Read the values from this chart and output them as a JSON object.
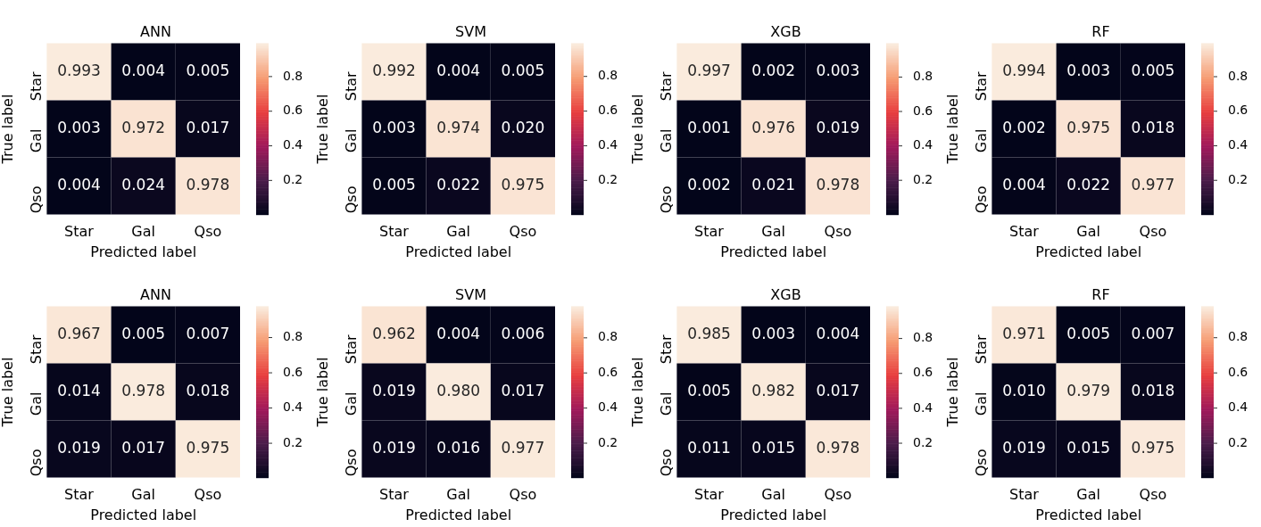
{
  "chart_data": [
    {
      "type": "heatmap",
      "title": "ANN",
      "xlabel": "Predicted label",
      "ylabel": "True label",
      "categories": [
        "Star",
        "Gal",
        "Qso"
      ],
      "y_categories": [
        "Star",
        "Gal",
        "Qso"
      ],
      "cells": [
        [
          0.993,
          0.004,
          0.005
        ],
        [
          0.003,
          0.972,
          0.017
        ],
        [
          0.004,
          0.024,
          0.978
        ]
      ],
      "cell_labels": [
        [
          "0.993",
          "0.004",
          "0.005"
        ],
        [
          "0.003",
          "0.972",
          "0.017"
        ],
        [
          "0.004",
          "0.024",
          "0.978"
        ]
      ],
      "data_labels": true,
      "clim": [
        0.003,
        0.993
      ],
      "cticks": [
        0.2,
        0.4,
        0.6,
        0.8
      ]
    },
    {
      "type": "heatmap",
      "title": "SVM",
      "xlabel": "Predicted label",
      "ylabel": "True label",
      "categories": [
        "Star",
        "Gal",
        "Qso"
      ],
      "y_categories": [
        "Star",
        "Gal",
        "Qso"
      ],
      "cells": [
        [
          0.992,
          0.004,
          0.005
        ],
        [
          0.003,
          0.974,
          0.02
        ],
        [
          0.005,
          0.022,
          0.975
        ]
      ],
      "cell_labels": [
        [
          "0.992",
          "0.004",
          "0.005"
        ],
        [
          "0.003",
          "0.974",
          "0.020"
        ],
        [
          "0.005",
          "0.022",
          "0.975"
        ]
      ],
      "data_labels": true,
      "clim": [
        0.003,
        0.992
      ],
      "cticks": [
        0.2,
        0.4,
        0.6,
        0.8
      ]
    },
    {
      "type": "heatmap",
      "title": "XGB",
      "xlabel": "Predicted label",
      "ylabel": "True label",
      "categories": [
        "Star",
        "Gal",
        "Qso"
      ],
      "y_categories": [
        "Star",
        "Gal",
        "Qso"
      ],
      "cells": [
        [
          0.997,
          0.002,
          0.003
        ],
        [
          0.001,
          0.976,
          0.019
        ],
        [
          0.002,
          0.021,
          0.978
        ]
      ],
      "cell_labels": [
        [
          "0.997",
          "0.002",
          "0.003"
        ],
        [
          "0.001",
          "0.976",
          "0.019"
        ],
        [
          "0.002",
          "0.021",
          "0.978"
        ]
      ],
      "data_labels": true,
      "clim": [
        0.001,
        0.997
      ],
      "cticks": [
        0.2,
        0.4,
        0.6,
        0.8
      ]
    },
    {
      "type": "heatmap",
      "title": "RF",
      "xlabel": "Predicted label",
      "ylabel": "True label",
      "categories": [
        "Star",
        "Gal",
        "Qso"
      ],
      "y_categories": [
        "Star",
        "Gal",
        "Qso"
      ],
      "cells": [
        [
          0.994,
          0.003,
          0.005
        ],
        [
          0.002,
          0.975,
          0.018
        ],
        [
          0.004,
          0.022,
          0.977
        ]
      ],
      "cell_labels": [
        [
          "0.994",
          "0.003",
          "0.005"
        ],
        [
          "0.002",
          "0.975",
          "0.018"
        ],
        [
          "0.004",
          "0.022",
          "0.977"
        ]
      ],
      "data_labels": true,
      "clim": [
        0.002,
        0.994
      ],
      "cticks": [
        0.2,
        0.4,
        0.6,
        0.8
      ]
    },
    {
      "type": "heatmap",
      "title": "ANN",
      "xlabel": "Predicted label",
      "ylabel": "True label",
      "categories": [
        "Star",
        "Gal",
        "Qso"
      ],
      "y_categories": [
        "Star",
        "Gal",
        "Qso"
      ],
      "cells": [
        [
          0.967,
          0.005,
          0.007
        ],
        [
          0.014,
          0.978,
          0.018
        ],
        [
          0.019,
          0.017,
          0.975
        ]
      ],
      "cell_labels": [
        [
          "0.967",
          "0.005",
          "0.007"
        ],
        [
          "0.014",
          "0.978",
          "0.018"
        ],
        [
          "0.019",
          "0.017",
          "0.975"
        ]
      ],
      "data_labels": true,
      "clim": [
        0.005,
        0.978
      ],
      "cticks": [
        0.2,
        0.4,
        0.6,
        0.8
      ]
    },
    {
      "type": "heatmap",
      "title": "SVM",
      "xlabel": "Predicted label",
      "ylabel": "True label",
      "categories": [
        "Star",
        "Gal",
        "Qso"
      ],
      "y_categories": [
        "Star",
        "Gal",
        "Qso"
      ],
      "cells": [
        [
          0.962,
          0.004,
          0.006
        ],
        [
          0.019,
          0.98,
          0.017
        ],
        [
          0.019,
          0.016,
          0.977
        ]
      ],
      "cell_labels": [
        [
          "0.962",
          "0.004",
          "0.006"
        ],
        [
          "0.019",
          "0.980",
          "0.017"
        ],
        [
          "0.019",
          "0.016",
          "0.977"
        ]
      ],
      "data_labels": true,
      "clim": [
        0.004,
        0.98
      ],
      "cticks": [
        0.2,
        0.4,
        0.6,
        0.8
      ]
    },
    {
      "type": "heatmap",
      "title": "XGB",
      "xlabel": "Predicted label",
      "ylabel": "True label",
      "categories": [
        "Star",
        "Gal",
        "Qso"
      ],
      "y_categories": [
        "Star",
        "Gal",
        "Qso"
      ],
      "cells": [
        [
          0.985,
          0.003,
          0.004
        ],
        [
          0.005,
          0.982,
          0.017
        ],
        [
          0.011,
          0.015,
          0.978
        ]
      ],
      "cell_labels": [
        [
          "0.985",
          "0.003",
          "0.004"
        ],
        [
          "0.005",
          "0.982",
          "0.017"
        ],
        [
          "0.011",
          "0.015",
          "0.978"
        ]
      ],
      "data_labels": true,
      "clim": [
        0.003,
        0.985
      ],
      "cticks": [
        0.2,
        0.4,
        0.6,
        0.8
      ]
    },
    {
      "type": "heatmap",
      "title": "RF",
      "xlabel": "Predicted label",
      "ylabel": "True label",
      "categories": [
        "Star",
        "Gal",
        "Qso"
      ],
      "y_categories": [
        "Star",
        "Gal",
        "Qso"
      ],
      "cells": [
        [
          0.971,
          0.005,
          0.007
        ],
        [
          0.01,
          0.979,
          0.018
        ],
        [
          0.019,
          0.015,
          0.975
        ]
      ],
      "cell_labels": [
        [
          "0.971",
          "0.005",
          "0.007"
        ],
        [
          "0.010",
          "0.979",
          "0.018"
        ],
        [
          "0.019",
          "0.015",
          "0.975"
        ]
      ],
      "data_labels": true,
      "clim": [
        0.005,
        0.979
      ],
      "cticks": [
        0.2,
        0.4,
        0.6,
        0.8
      ]
    }
  ]
}
